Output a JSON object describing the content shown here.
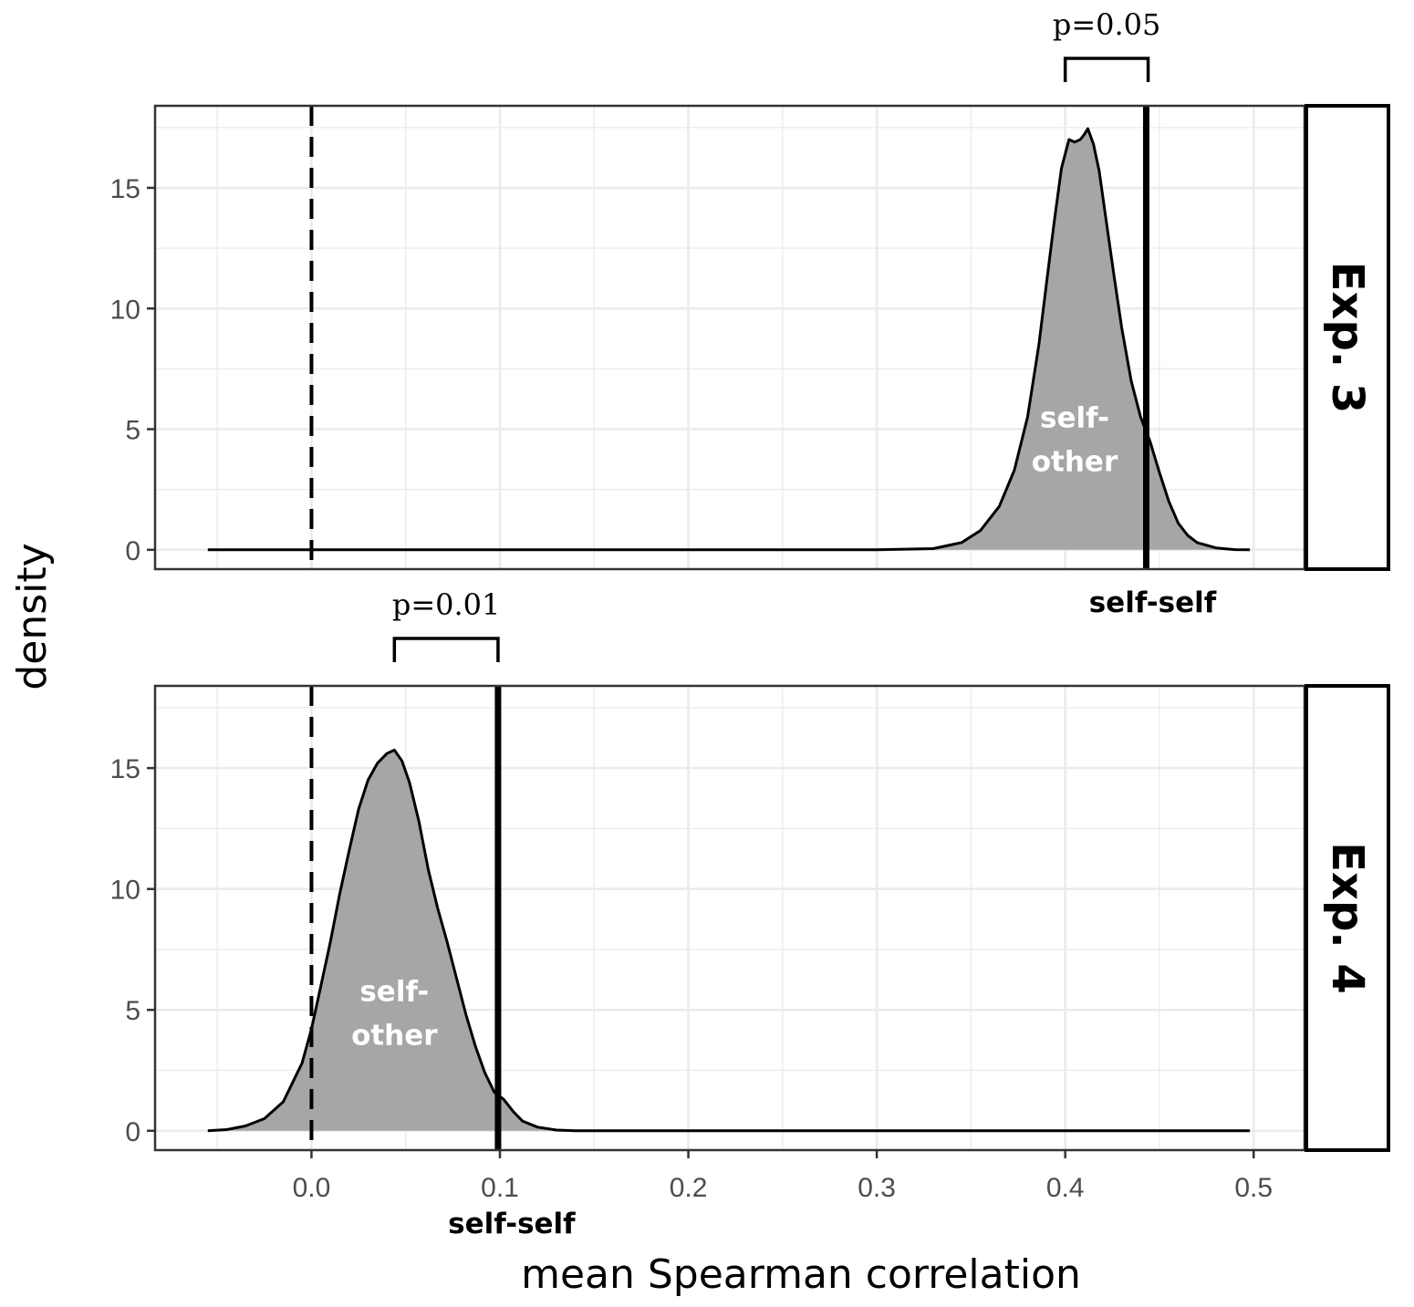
{
  "chart_data": {
    "type": "area",
    "xlabel": "mean Spearman correlation",
    "ylabel": "density",
    "xlim": [
      -0.083,
      0.527
    ],
    "ylim": [
      -0.8,
      18.4
    ],
    "x_ticks": [
      0.0,
      0.1,
      0.2,
      0.3,
      0.4,
      0.5
    ],
    "x_tick_labels": [
      "0.0",
      "0.1",
      "0.2",
      "0.3",
      "0.4",
      "0.5"
    ],
    "y_ticks": [
      0,
      5,
      10,
      15
    ],
    "y_tick_labels": [
      "0",
      "5",
      "10",
      "15"
    ],
    "grid": true,
    "reference_line_x": 0.0,
    "colors": {
      "fill": "#a6a6a6",
      "line": "#000000",
      "grid": "#ebebeb"
    },
    "panels": [
      {
        "strip": "Exp. 3",
        "self_self": 0.443,
        "self_self_label": "self-self",
        "dist_label_line1": "self-",
        "dist_label_line2": "other",
        "dist_label_pos": [
          0.405,
          3.3
        ],
        "p_label": "p=0.05",
        "bracket": [
          0.4,
          0.444
        ],
        "density": [
          [
            -0.055,
            0
          ],
          [
            0.3,
            0
          ],
          [
            0.33,
            0.05
          ],
          [
            0.345,
            0.3
          ],
          [
            0.355,
            0.8
          ],
          [
            0.365,
            1.8
          ],
          [
            0.373,
            3.3
          ],
          [
            0.38,
            5.5
          ],
          [
            0.386,
            8.5
          ],
          [
            0.39,
            11.0
          ],
          [
            0.394,
            13.5
          ],
          [
            0.398,
            15.8
          ],
          [
            0.402,
            17.0
          ],
          [
            0.405,
            16.9
          ],
          [
            0.408,
            17.0
          ],
          [
            0.41,
            17.2
          ],
          [
            0.412,
            17.45
          ],
          [
            0.415,
            16.8
          ],
          [
            0.418,
            15.7
          ],
          [
            0.422,
            13.5
          ],
          [
            0.426,
            11.3
          ],
          [
            0.43,
            9.2
          ],
          [
            0.435,
            7.0
          ],
          [
            0.44,
            5.5
          ],
          [
            0.445,
            4.5
          ],
          [
            0.45,
            3.2
          ],
          [
            0.455,
            2.0
          ],
          [
            0.46,
            1.1
          ],
          [
            0.465,
            0.6
          ],
          [
            0.47,
            0.3
          ],
          [
            0.48,
            0.08
          ],
          [
            0.49,
            0.01
          ],
          [
            0.498,
            0
          ]
        ]
      },
      {
        "strip": "Exp. 4",
        "self_self": 0.099,
        "self_self_label": "self-self",
        "dist_label_line1": "self-",
        "dist_label_line2": "other",
        "dist_label_pos": [
          0.044,
          3.6
        ],
        "p_label": "p=0.01",
        "bracket": [
          0.044,
          0.099
        ],
        "density": [
          [
            -0.055,
            0
          ],
          [
            -0.045,
            0.05
          ],
          [
            -0.035,
            0.2
          ],
          [
            -0.025,
            0.5
          ],
          [
            -0.015,
            1.2
          ],
          [
            -0.01,
            2.0
          ],
          [
            -0.005,
            2.8
          ],
          [
            0.0,
            4.2
          ],
          [
            0.005,
            6.0
          ],
          [
            0.01,
            7.8
          ],
          [
            0.015,
            9.8
          ],
          [
            0.02,
            11.6
          ],
          [
            0.025,
            13.3
          ],
          [
            0.03,
            14.5
          ],
          [
            0.035,
            15.2
          ],
          [
            0.04,
            15.6
          ],
          [
            0.044,
            15.75
          ],
          [
            0.048,
            15.3
          ],
          [
            0.052,
            14.4
          ],
          [
            0.057,
            12.8
          ],
          [
            0.062,
            10.8
          ],
          [
            0.067,
            9.2
          ],
          [
            0.072,
            7.8
          ],
          [
            0.077,
            6.3
          ],
          [
            0.082,
            4.8
          ],
          [
            0.087,
            3.5
          ],
          [
            0.092,
            2.4
          ],
          [
            0.097,
            1.6
          ],
          [
            0.102,
            1.3
          ],
          [
            0.107,
            0.8
          ],
          [
            0.112,
            0.4
          ],
          [
            0.12,
            0.15
          ],
          [
            0.13,
            0.03
          ],
          [
            0.14,
            0
          ],
          [
            0.498,
            0
          ]
        ]
      }
    ]
  }
}
